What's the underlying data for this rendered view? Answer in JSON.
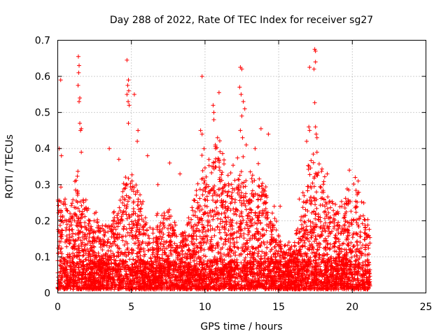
{
  "chart_data": {
    "type": "scatter",
    "title": "Day 288 of 2022, Rate Of TEC Index for receiver sg27",
    "xlabel": "GPS time / hours",
    "ylabel": "ROTI / TECUs",
    "xlim": [
      0,
      25
    ],
    "ylim": [
      0,
      0.7
    ],
    "xticks": [
      "0",
      "5",
      "10",
      "15",
      "20",
      "25"
    ],
    "yticks": [
      "0",
      "0.1",
      "0.2",
      "0.3",
      "0.4",
      "0.5",
      "0.6",
      "0.7"
    ],
    "grid": true,
    "marker": "+",
    "color": "#ff0000",
    "x_data_range": [
      0,
      21.2
    ],
    "envelope": {
      "x": [
        0,
        0.5,
        1,
        1.4,
        1.7,
        2.2,
        3,
        3.5,
        4.2,
        4.7,
        5.2,
        5.8,
        6.5,
        7,
        7.5,
        8,
        8.5,
        9,
        9.5,
        9.9,
        10.3,
        10.8,
        11.3,
        11.8,
        12.4,
        12.8,
        13.3,
        13.8,
        14.3,
        14.8,
        15.2,
        15.8,
        16.3,
        16.8,
        17.3,
        17.8,
        18.3,
        18.8,
        19.3,
        19.8,
        20.3,
        20.8,
        21.2
      ],
      "y": [
        0.28,
        0.22,
        0.26,
        0.3,
        0.28,
        0.2,
        0.18,
        0.2,
        0.24,
        0.3,
        0.32,
        0.22,
        0.18,
        0.2,
        0.22,
        0.16,
        0.15,
        0.2,
        0.28,
        0.36,
        0.34,
        0.38,
        0.33,
        0.3,
        0.36,
        0.3,
        0.3,
        0.32,
        0.24,
        0.18,
        0.12,
        0.12,
        0.16,
        0.3,
        0.36,
        0.32,
        0.26,
        0.22,
        0.22,
        0.26,
        0.28,
        0.24,
        0.18
      ]
    },
    "outliers": [
      {
        "x": 0.1,
        "y": 0.4
      },
      {
        "x": 0.2,
        "y": 0.59
      },
      {
        "x": 0.25,
        "y": 0.38
      },
      {
        "x": 1.4,
        "y": 0.655
      },
      {
        "x": 1.45,
        "y": 0.63
      },
      {
        "x": 1.42,
        "y": 0.61
      },
      {
        "x": 1.38,
        "y": 0.575
      },
      {
        "x": 1.5,
        "y": 0.54
      },
      {
        "x": 1.45,
        "y": 0.53
      },
      {
        "x": 1.5,
        "y": 0.47
      },
      {
        "x": 1.6,
        "y": 0.455
      },
      {
        "x": 1.55,
        "y": 0.45
      },
      {
        "x": 1.6,
        "y": 0.39
      },
      {
        "x": 3.5,
        "y": 0.4
      },
      {
        "x": 4.15,
        "y": 0.37
      },
      {
        "x": 4.7,
        "y": 0.645
      },
      {
        "x": 4.8,
        "y": 0.59
      },
      {
        "x": 4.75,
        "y": 0.575
      },
      {
        "x": 4.82,
        "y": 0.56
      },
      {
        "x": 4.7,
        "y": 0.55
      },
      {
        "x": 4.78,
        "y": 0.53
      },
      {
        "x": 4.85,
        "y": 0.52
      },
      {
        "x": 5.2,
        "y": 0.55
      },
      {
        "x": 4.8,
        "y": 0.47
      },
      {
        "x": 5.45,
        "y": 0.45
      },
      {
        "x": 5.4,
        "y": 0.42
      },
      {
        "x": 6.1,
        "y": 0.38
      },
      {
        "x": 7.6,
        "y": 0.36
      },
      {
        "x": 9.8,
        "y": 0.6
      },
      {
        "x": 9.7,
        "y": 0.45
      },
      {
        "x": 9.8,
        "y": 0.44
      },
      {
        "x": 10.55,
        "y": 0.52
      },
      {
        "x": 10.6,
        "y": 0.5
      },
      {
        "x": 10.6,
        "y": 0.48
      },
      {
        "x": 10.95,
        "y": 0.555
      },
      {
        "x": 10.85,
        "y": 0.43
      },
      {
        "x": 10.7,
        "y": 0.41
      },
      {
        "x": 12.4,
        "y": 0.625
      },
      {
        "x": 12.5,
        "y": 0.62
      },
      {
        "x": 12.35,
        "y": 0.57
      },
      {
        "x": 12.45,
        "y": 0.55
      },
      {
        "x": 12.6,
        "y": 0.53
      },
      {
        "x": 12.7,
        "y": 0.51
      },
      {
        "x": 12.5,
        "y": 0.49
      },
      {
        "x": 12.4,
        "y": 0.45
      },
      {
        "x": 12.55,
        "y": 0.43
      },
      {
        "x": 12.8,
        "y": 0.41
      },
      {
        "x": 13.4,
        "y": 0.4
      },
      {
        "x": 13.8,
        "y": 0.455
      },
      {
        "x": 14.3,
        "y": 0.44
      },
      {
        "x": 15.1,
        "y": 0.24
      },
      {
        "x": 17.1,
        "y": 0.625
      },
      {
        "x": 17.45,
        "y": 0.675
      },
      {
        "x": 17.5,
        "y": 0.67
      },
      {
        "x": 17.5,
        "y": 0.64
      },
      {
        "x": 17.4,
        "y": 0.62
      },
      {
        "x": 17.45,
        "y": 0.527
      },
      {
        "x": 17.05,
        "y": 0.46
      },
      {
        "x": 17.1,
        "y": 0.45
      },
      {
        "x": 17.5,
        "y": 0.46
      },
      {
        "x": 17.55,
        "y": 0.44
      },
      {
        "x": 17.6,
        "y": 0.43
      },
      {
        "x": 17.6,
        "y": 0.39
      },
      {
        "x": 16.9,
        "y": 0.42
      },
      {
        "x": 18.3,
        "y": 0.33
      },
      {
        "x": 19.8,
        "y": 0.34
      },
      {
        "x": 20.2,
        "y": 0.32
      },
      {
        "x": 20.4,
        "y": 0.31
      },
      {
        "x": 0.5,
        "y": 0.26
      },
      {
        "x": 2.5,
        "y": 0.22
      },
      {
        "x": 6.8,
        "y": 0.3
      },
      {
        "x": 8.3,
        "y": 0.33
      },
      {
        "x": 14.7,
        "y": 0.24
      },
      {
        "x": 16.4,
        "y": 0.26
      }
    ]
  }
}
